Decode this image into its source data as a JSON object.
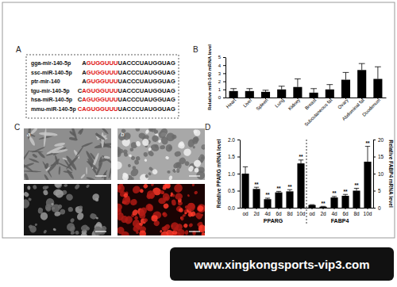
{
  "panel_labels": [
    "A",
    "B",
    "C",
    "D"
  ],
  "panel_a": {
    "rows": [
      {
        "name": "gga-mir-140-5p",
        "prefix": "A",
        "highlight": "GUGGUUU",
        "suffix": "UACCCUAUGGUAG"
      },
      {
        "name": "ssc-miR-140-5p",
        "prefix": "A",
        "highlight": "GUGGUUU",
        "suffix": "UACCCUAUGGUAG"
      },
      {
        "name": "ptr-mir-140",
        "prefix": "A",
        "highlight": "GUGGUUU",
        "suffix": "UACCCUAUGGUAG"
      },
      {
        "name": "tgu-mir-140-5p",
        "prefix": "C",
        "highlight": "AGUGGUUU",
        "suffix": "UACCCUAUGGUAG"
      },
      {
        "name": "hsa-miR-140-5p",
        "prefix": "C",
        "highlight": "AGUGGUUU",
        "suffix": "UACCCUAUGGUAG"
      },
      {
        "name": "mmu-miR-140-5p",
        "highlight": "CAGUGGUUU",
        "suffix": "UACCCUAUGGUAG"
      }
    ]
  },
  "panel_c": {
    "image_labels": [
      "a",
      "b"
    ]
  },
  "chart_data": [
    {
      "type": "bar",
      "y_label": "Relative miR-140 mRNA level",
      "categories": [
        "Heart",
        "Liver",
        "Spleen",
        "Lung",
        "Kidney",
        "Breast",
        "Subcutaneous fat",
        "Ovary",
        "Abdominal fat",
        "Duodenum"
      ],
      "values": [
        0.8,
        0.8,
        0.7,
        1.0,
        1.3,
        0.6,
        1.0,
        2.2,
        3.4,
        2.3
      ],
      "errors": [
        0.3,
        0.3,
        0.2,
        0.4,
        1.0,
        0.5,
        0.6,
        0.9,
        0.8,
        1.5
      ],
      "color": "#000000",
      "ylim": [
        0,
        5
      ],
      "yticks": [
        0,
        1,
        2,
        3,
        4,
        5
      ]
    },
    {
      "type": "bar",
      "y_label": "Relative PPARG mRNA level",
      "y2_label": "Relative FABP4 mRNA level",
      "categories": [
        "od",
        "2d",
        "4d",
        "6d",
        "8d",
        "10d",
        "od",
        "2d",
        "4d",
        "6d",
        "8d",
        "10d"
      ],
      "series": [
        {
          "name": "PPARG",
          "color": "#000000",
          "values": [
            1.0,
            0.55,
            0.25,
            0.45,
            0.48,
            1.3,
            null,
            null,
            null,
            null,
            null,
            null
          ],
          "errors": [
            0.2,
            0.05,
            0.03,
            0.03,
            0.05,
            0.1,
            null,
            null,
            null,
            null,
            null,
            null
          ],
          "significance": [
            null,
            "**",
            "**",
            "**",
            "**",
            "**",
            null,
            null,
            null,
            null,
            null,
            null
          ]
        },
        {
          "name": "FABP4",
          "color": "#000000",
          "axis": "y2",
          "values": [
            null,
            null,
            null,
            null,
            null,
            null,
            0.8,
            0.3,
            3.0,
            3.5,
            5.0,
            13.5
          ],
          "errors": [
            null,
            null,
            null,
            null,
            null,
            null,
            0.1,
            0.1,
            0.3,
            0.4,
            0.7,
            4.5
          ],
          "significance": [
            null,
            null,
            null,
            null,
            null,
            null,
            null,
            "**",
            "**",
            "**",
            "**",
            "**"
          ]
        }
      ],
      "ylim": [
        0,
        2
      ],
      "yticks": [
        {
          "value": 0,
          "label": "0.0"
        },
        {
          "value": 0.5,
          "label": "0.5"
        },
        {
          "value": 1,
          "label": "1.0"
        },
        {
          "value": 1.5,
          "label": "1.5"
        },
        {
          "value": 2,
          "label": "2.0"
        }
      ],
      "y2lim": [
        0,
        20
      ],
      "y2ticks": [
        0,
        5,
        10,
        15,
        20
      ]
    }
  ],
  "banner": {
    "text": "www.xingkongsports-vip3.com"
  }
}
